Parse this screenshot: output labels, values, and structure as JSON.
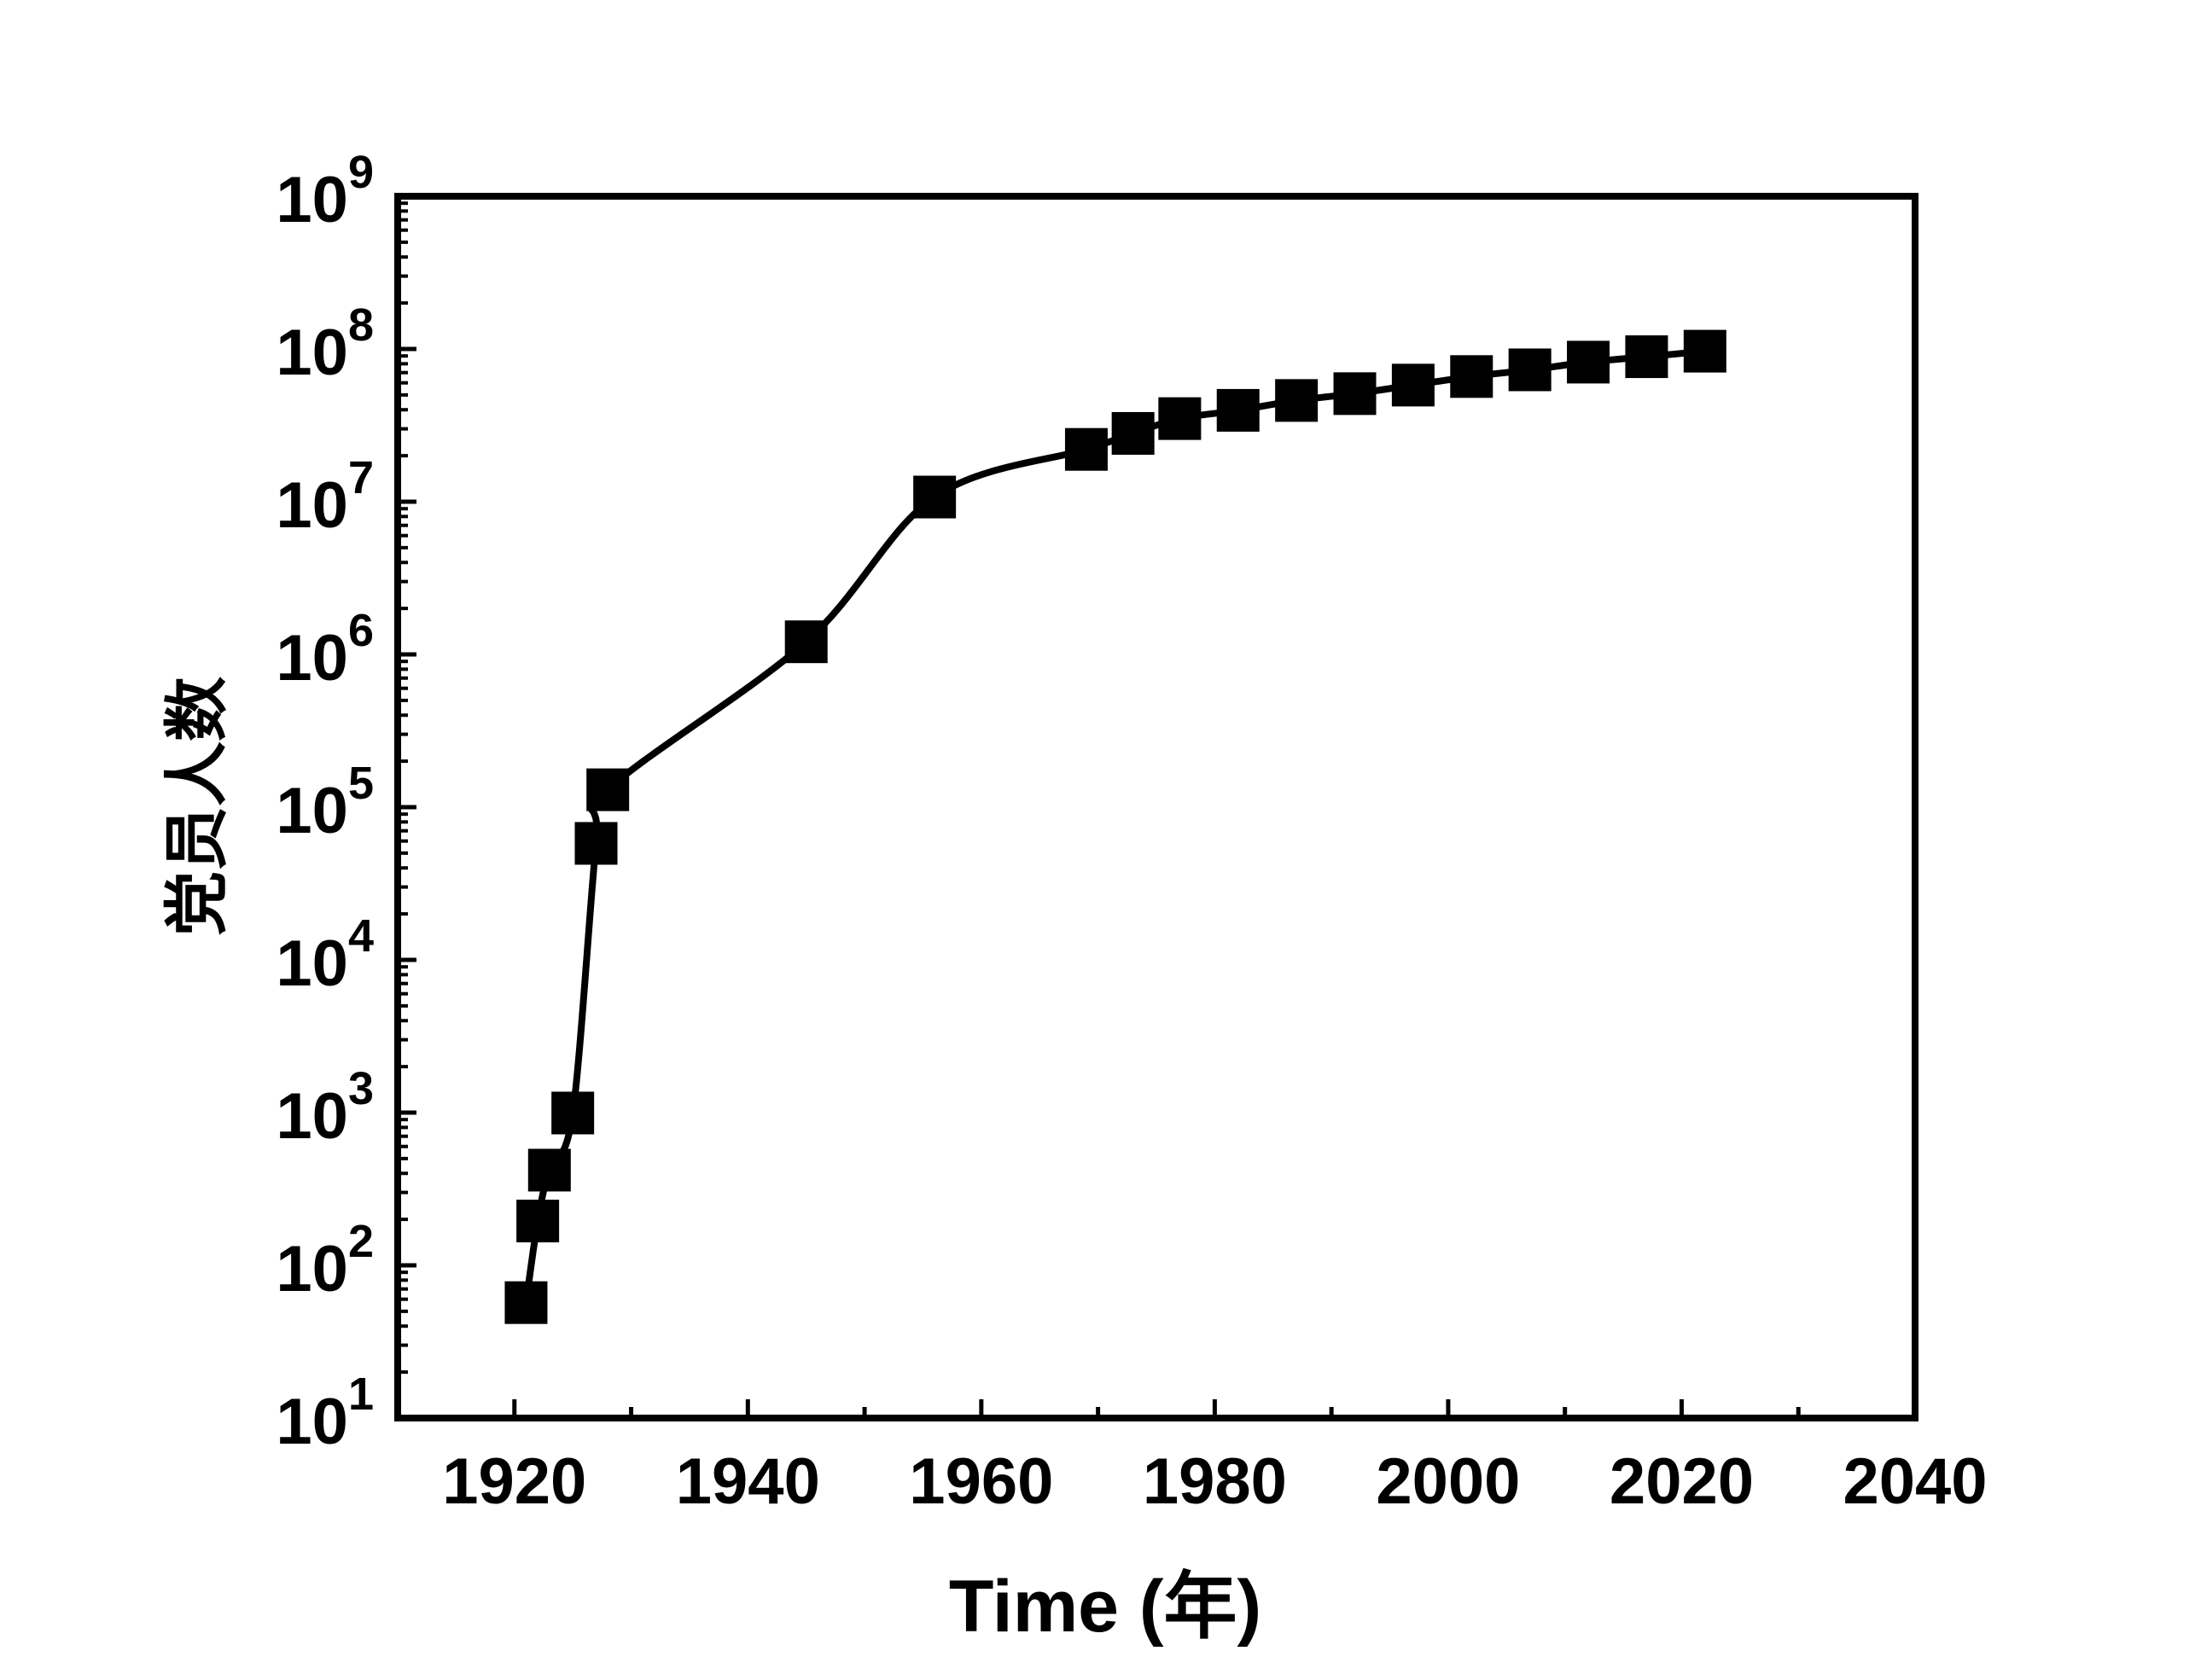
{
  "chart_data": {
    "type": "line",
    "title": "",
    "xlabel": "Time (年)",
    "ylabel": "党员人数",
    "xlim": [
      1910,
      2040
    ],
    "ylim": [
      10,
      1000000000
    ],
    "yscale": "log",
    "x_ticks": [
      "1920",
      "1940",
      "1960",
      "1980",
      "2000",
      "2020",
      "2040"
    ],
    "y_ticks": [
      {
        "base": "10",
        "exp": "1"
      },
      {
        "base": "10",
        "exp": "2"
      },
      {
        "base": "10",
        "exp": "3"
      },
      {
        "base": "10",
        "exp": "4"
      },
      {
        "base": "10",
        "exp": "5"
      },
      {
        "base": "10",
        "exp": "6"
      },
      {
        "base": "10",
        "exp": "7"
      },
      {
        "base": "10",
        "exp": "8"
      },
      {
        "base": "10",
        "exp": "9"
      }
    ],
    "grid": false,
    "marker": "square",
    "line_style": "smooth",
    "color": "#000000",
    "series": [
      {
        "x": [
          1921,
          1922,
          1923,
          1925,
          1927,
          1928,
          1945,
          1956,
          1969,
          1973,
          1977,
          1982,
          1987,
          1992,
          1997,
          2002,
          2007,
          2012,
          2017,
          2022
        ],
        "y": [
          57,
          195,
          420,
          994,
          57900,
          130000,
          1210000,
          10730000,
          22000000,
          28000000,
          35000000,
          39650000,
          46000000,
          51000000,
          58000000,
          66000000,
          73000000,
          82000000,
          89000000,
          96710000
        ]
      }
    ]
  }
}
